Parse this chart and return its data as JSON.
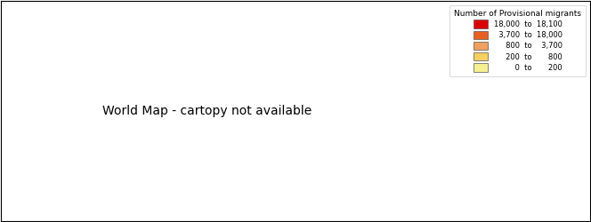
{
  "legend_title": "Number of Provisional migrants",
  "legend_items": [
    {
      "label": "18,000  to  18,100",
      "color": "#dd0000"
    },
    {
      "label": "  3,700  to  18,000",
      "color": "#e86020"
    },
    {
      "label": "     800  to    3,700",
      "color": "#f0a060"
    },
    {
      "label": "     200  to       800",
      "color": "#f5d060"
    },
    {
      "label": "         0  to       200",
      "color": "#f5f090"
    }
  ],
  "country_colors": {
    "India": "#dd0000",
    "China": "#e86020",
    "Nepal": "#e86020",
    "Bangladesh": "#e86020",
    "Philippines": "#e86020",
    "Pakistan": "#f0a060",
    "Sri Lanka": "#f0a060",
    "Indonesia": "#f0a060",
    "Malaysia": "#f0a060",
    "Vietnam": "#f0a060",
    "South Korea": "#f0a060",
    "Japan": "#f0a060",
    "Thailand": "#f0a060",
    "Myanmar": "#f0a060",
    "Cambodia": "#f0a060",
    "Brazil": "#f0a060",
    "Afghanistan": "#f5d060",
    "United Kingdom": "#f5d060",
    "New Zealand": "#f5d060",
    "South Africa": "#f5d060",
    "United States of America": "#f5d060",
    "Canada": "#f5d060",
    "Australia": "#f5d060",
    "Argentina": "#f5d060",
    "Colombia": "#f5d060",
    "Peru": "#f5d060",
    "Chile": "#f5d060",
    "Russia": "#f5d060",
    "Germany": "#f5d060",
    "France": "#f5d060",
    "Italy": "#f5d060",
    "Spain": "#f5d060",
    "Netherlands": "#f5d060",
    "Poland": "#f5d060",
    "Sweden": "#f5d060",
    "Norway": "#f5d060",
    "Finland": "#f5d060",
    "Denmark": "#f5d060",
    "Ireland": "#f5d060",
    "Portugal": "#f5d060",
    "Greece": "#f5d060",
    "Turkey": "#f5d060",
    "Iran": "#f5d060",
    "Iraq": "#f5d060",
    "Saudi Arabia": "#f5d060",
    "Egypt": "#f5d060",
    "Nigeria": "#f5d060",
    "Kenya": "#f5d060",
    "Ethiopia": "#f5d060",
    "Ghana": "#f5d060",
    "Zimbabwe": "#f5d060",
    "Zambia": "#f5d060",
    "Uganda": "#f5d060",
    "Tanzania": "#f5d060",
    "Mozambique": "#f5d060",
    "Morocco": "#f5d060",
    "Algeria": "#f5d060",
    "Mexico": "#f5d060",
    "Ukraine": "#f5d060",
    "Kazakhstan": "#f5d060",
    "Sudan": "#f5d060",
    "Angola": "#f5d060",
    "Madagascar": "#f5d060",
    "Cameroon": "#f5d060",
    "Niger": "#f5d060",
    "Mali": "#f5d060",
    "Burkina Faso": "#f5d060",
    "Syria": "#f5d060",
    "Venezuela": "#f5d060",
    "Ecuador": "#f5d060",
    "Bolivia": "#f5d060",
    "Somalia": "#f5d060",
    "Senegal": "#f5d060",
    "Libya": "#f5d060",
    "Chad": "#f5d060",
    "Romania": "#f5d060",
    "Uzbekistan": "#f5d060",
    "Mongolia": "#f5d060",
    "Laos": "#f5d060",
    "Papua New Guinea": "#f5d060",
    "Fiji": "#f5d060",
    "Bhutan": "#f5d060"
  },
  "default_color": "#f5f090",
  "ocean_color": "#ffffff",
  "border_color": "#444444",
  "border_linewidth": 0.3,
  "figsize": [
    6.64,
    2.5
  ],
  "dpi": 100,
  "legend_fontsize": 6.0,
  "legend_title_fontsize": 6.5
}
